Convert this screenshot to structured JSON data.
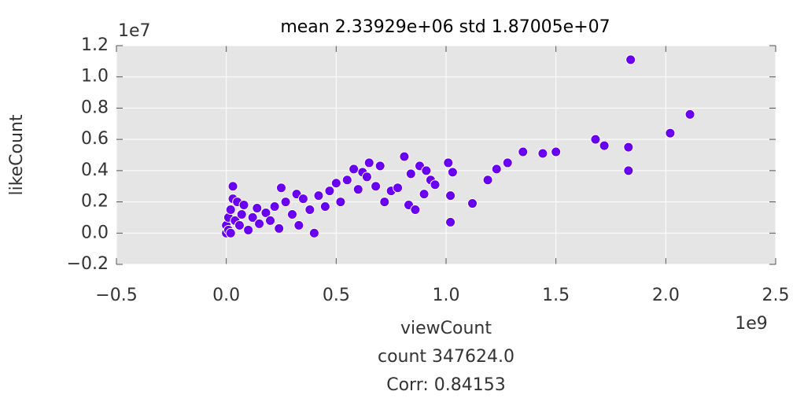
{
  "chart_data": {
    "type": "scatter",
    "title": "mean 2.33929e+06 std 1.87005e+07",
    "xlabel": "viewCount",
    "ylabel": "likeCount",
    "x_offset_label": "1e9",
    "y_offset_label": "1e7",
    "annotations": [
      "count 347624.0",
      "Corr: 0.84153"
    ],
    "color": "#6a00f0",
    "grid": true,
    "x": [
      0.0,
      0.0,
      0.01,
      0.01,
      0.02,
      0.02,
      0.03,
      0.03,
      0.04,
      0.05,
      0.06,
      0.07,
      0.08,
      0.1,
      0.12,
      0.14,
      0.15,
      0.18,
      0.2,
      0.22,
      0.24,
      0.25,
      0.27,
      0.3,
      0.32,
      0.33,
      0.35,
      0.38,
      0.4,
      0.42,
      0.45,
      0.47,
      0.5,
      0.52,
      0.55,
      0.58,
      0.6,
      0.62,
      0.64,
      0.65,
      0.68,
      0.7,
      0.72,
      0.75,
      0.78,
      0.81,
      0.83,
      0.84,
      0.86,
      0.88,
      0.9,
      0.91,
      0.93,
      0.95,
      1.01,
      1.02,
      1.02,
      1.03,
      1.12,
      1.19,
      1.23,
      1.28,
      1.35,
      1.44,
      1.5,
      1.68,
      1.72,
      1.83,
      1.83,
      1.84,
      2.02,
      2.11
    ],
    "values": [
      0.0,
      0.05,
      0.02,
      0.1,
      0.0,
      0.15,
      0.22,
      0.3,
      0.08,
      0.2,
      0.05,
      0.12,
      0.18,
      0.02,
      0.1,
      0.16,
      0.06,
      0.13,
      0.08,
      0.17,
      0.03,
      0.29,
      0.2,
      0.12,
      0.25,
      0.05,
      0.22,
      0.15,
      0.0,
      0.24,
      0.17,
      0.27,
      0.32,
      0.2,
      0.34,
      0.41,
      0.28,
      0.39,
      0.36,
      0.45,
      0.3,
      0.43,
      0.2,
      0.27,
      0.29,
      0.49,
      0.18,
      0.38,
      0.15,
      0.43,
      0.25,
      0.4,
      0.34,
      0.31,
      0.45,
      0.24,
      0.07,
      0.39,
      0.19,
      0.34,
      0.41,
      0.45,
      0.52,
      0.51,
      0.52,
      0.6,
      0.56,
      0.55,
      0.4,
      1.11,
      0.64,
      0.76
    ],
    "xlim": [
      -0.5,
      2.5
    ],
    "ylim": [
      -0.2,
      1.2
    ],
    "xticks": [
      {
        "value": -0.5,
        "label": "−0.5"
      },
      {
        "value": 0,
        "label": "0.0"
      },
      0.5,
      {
        "value": 1,
        "label": "1.0"
      },
      1.5,
      {
        "value": 2,
        "label": "2.0"
      },
      2.5
    ],
    "yticks": [
      {
        "value": -0.2,
        "label": "−0.2"
      },
      {
        "value": 0,
        "label": "0.0"
      },
      0.2,
      0.4,
      0.6,
      0.8,
      {
        "value": 1,
        "label": "1.0"
      },
      1.2
    ]
  }
}
